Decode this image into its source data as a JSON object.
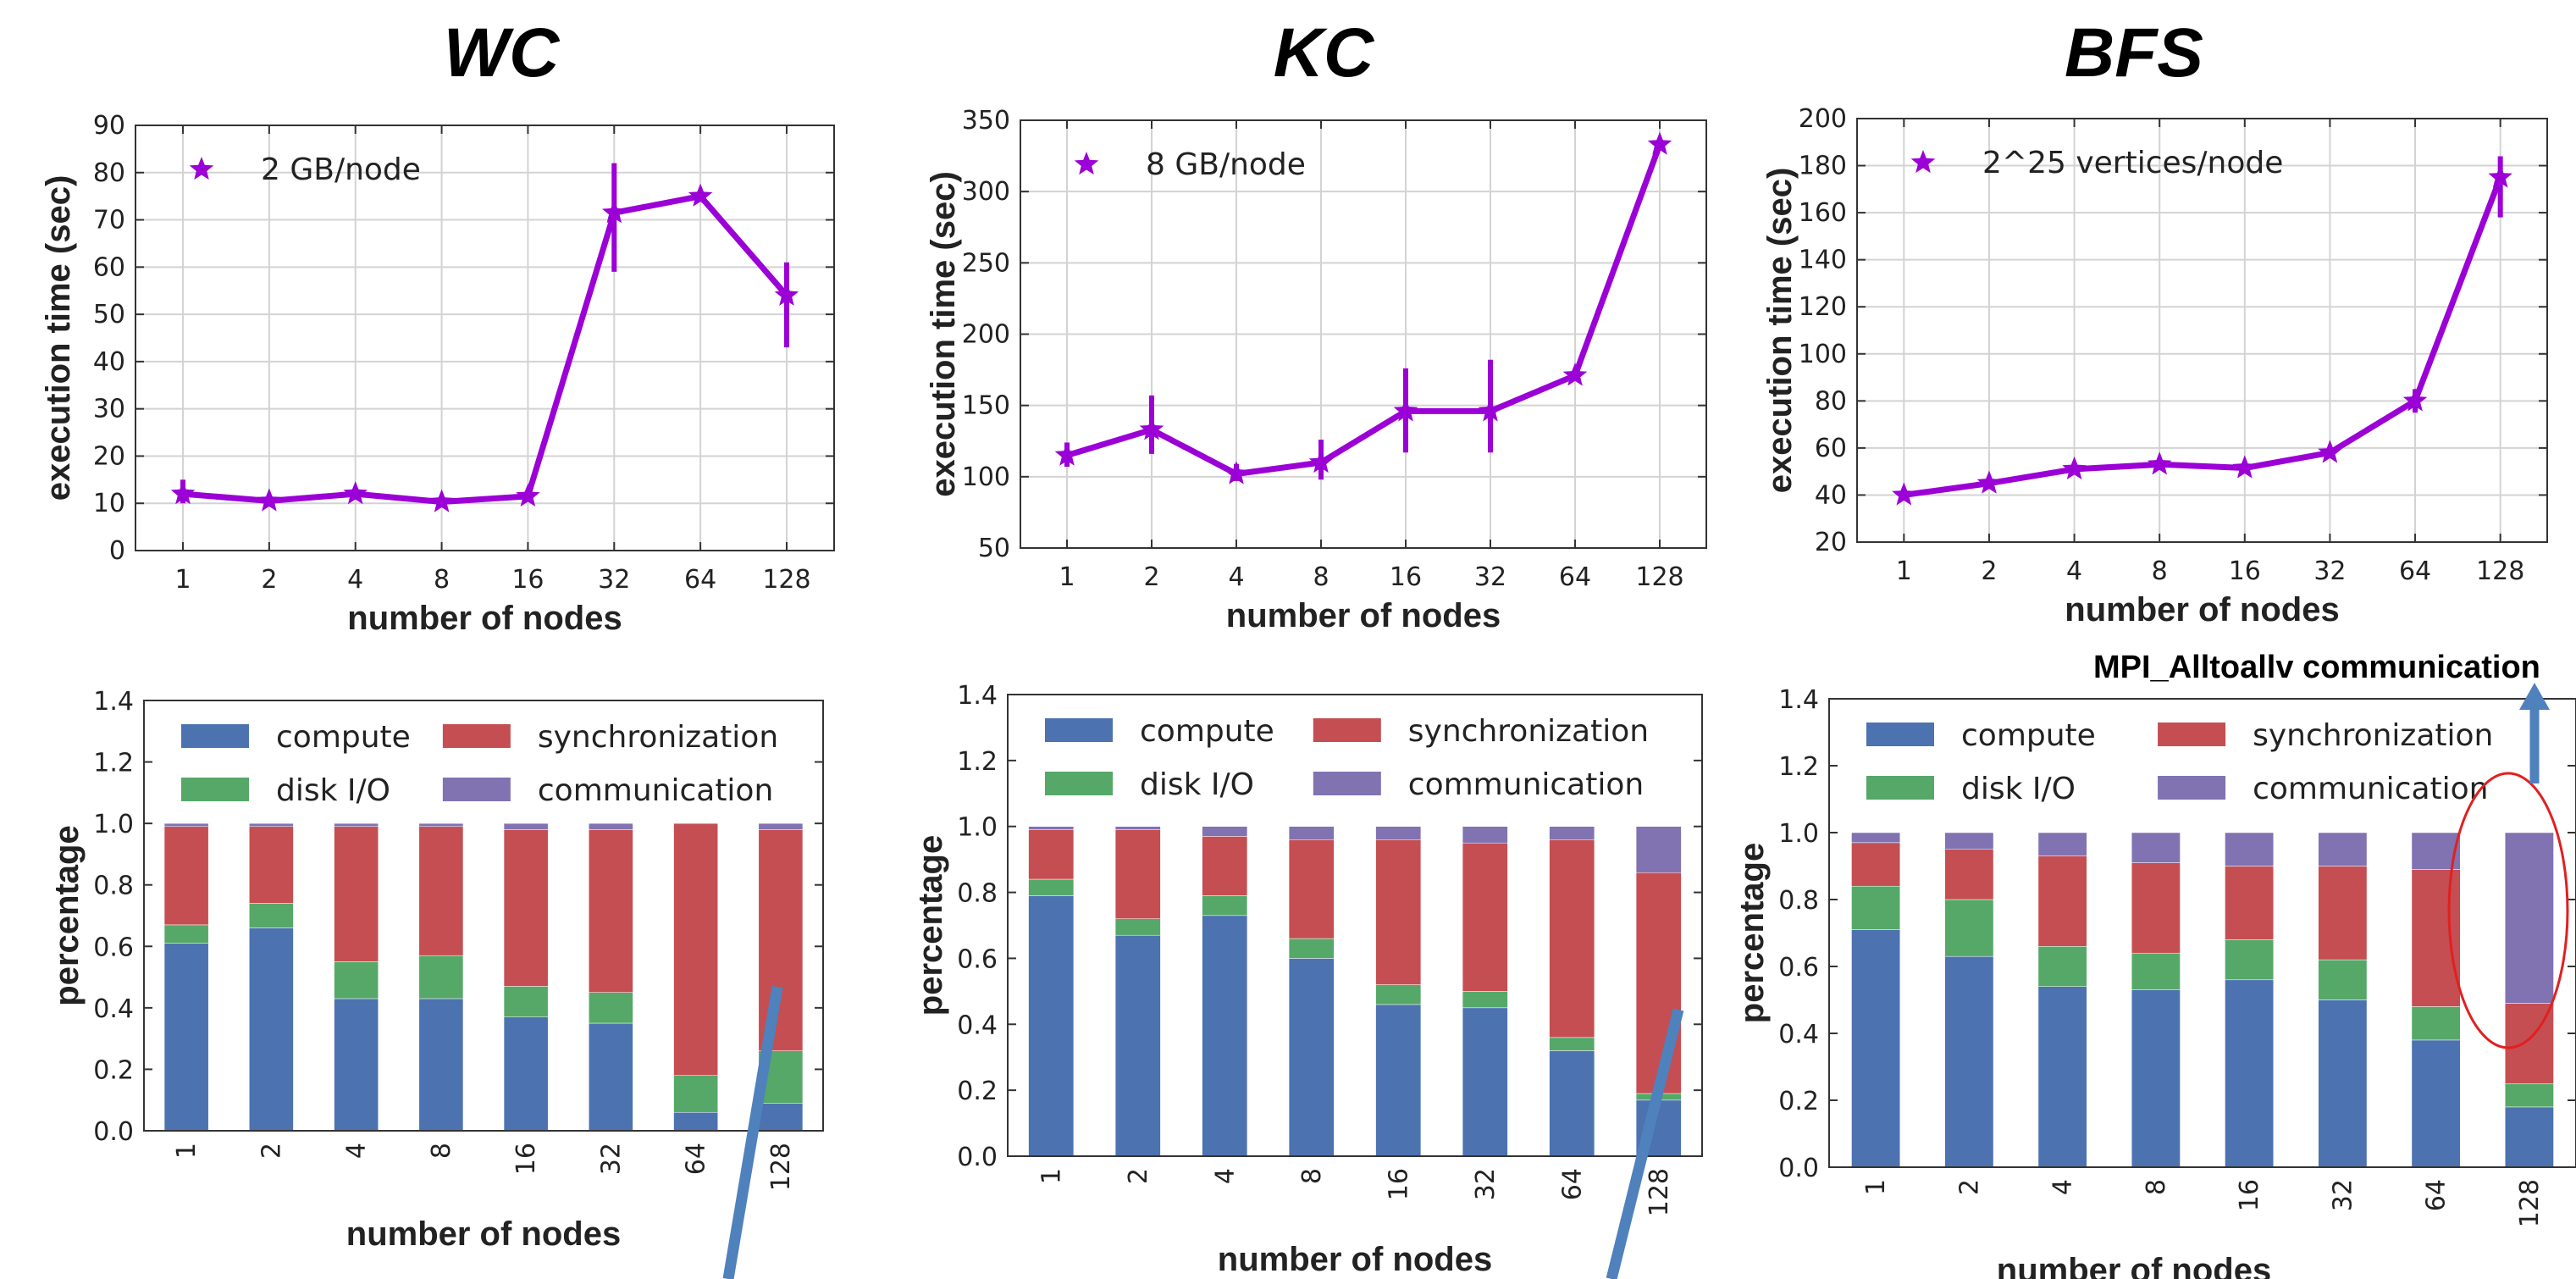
{
  "panel_titles": [
    "WC",
    "KC",
    "BFS"
  ],
  "annotation": "MPI_Alltoallv communication",
  "colors": {
    "line": "#9b00d6",
    "compute": "#4c72b0",
    "disk_io": "#55a868",
    "synchronization": "#c44e52",
    "communication": "#8172b2",
    "arrow": "#4f81bd",
    "highlight": "#e02020"
  },
  "chart_data": [
    {
      "type": "line",
      "title": "WC",
      "xlabel": "number of nodes",
      "ylabel": "execution time (sec)",
      "categories": [
        "1",
        "2",
        "4",
        "8",
        "16",
        "32",
        "64",
        "128"
      ],
      "series": [
        {
          "name": "2 GB/node",
          "values": [
            12,
            10.5,
            12,
            10.3,
            11.5,
            71.5,
            75,
            54
          ],
          "error_low": [
            10,
            10,
            11,
            9.5,
            10.5,
            59,
            74,
            43
          ],
          "error_high": [
            15,
            11,
            12.5,
            11,
            12,
            82,
            76,
            61
          ]
        }
      ],
      "yticks": [
        "0",
        "10",
        "20",
        "30",
        "40",
        "50",
        "60",
        "70",
        "80",
        "90"
      ],
      "ylim": [
        0,
        90
      ],
      "legend": "top-left",
      "grid": true
    },
    {
      "type": "line",
      "title": "KC",
      "xlabel": "number of nodes",
      "ylabel": "execution time (sec)",
      "categories": [
        "1",
        "2",
        "4",
        "8",
        "16",
        "32",
        "64",
        "128"
      ],
      "series": [
        {
          "name": "8 GB/node",
          "values": [
            115,
            133,
            102,
            110,
            146,
            146,
            171,
            333
          ],
          "error_low": [
            107,
            116,
            97,
            98,
            117,
            117,
            168,
            330
          ],
          "error_high": [
            124,
            157,
            109,
            126,
            176,
            182,
            174,
            336
          ]
        }
      ],
      "yticks": [
        "50",
        "100",
        "150",
        "200",
        "250",
        "300",
        "350"
      ],
      "ylim": [
        50,
        350
      ],
      "legend": "top-left",
      "grid": true
    },
    {
      "type": "line",
      "title": "BFS",
      "xlabel": "number of nodes",
      "ylabel": "execution time (sec)",
      "categories": [
        "1",
        "2",
        "4",
        "8",
        "16",
        "32",
        "64",
        "128"
      ],
      "series": [
        {
          "name": "2^25 vertices/node",
          "values": [
            40,
            45,
            51,
            53,
            51.5,
            58,
            80,
            175
          ],
          "error_low": [
            39,
            43,
            49,
            51,
            50,
            56,
            75,
            158
          ],
          "error_high": [
            41,
            47,
            53,
            55,
            53,
            60,
            85,
            184
          ]
        }
      ],
      "yticks": [
        "20",
        "40",
        "60",
        "80",
        "100",
        "120",
        "140",
        "160",
        "180",
        "200"
      ],
      "ylim": [
        20,
        200
      ],
      "legend": "top-left",
      "grid": true
    },
    {
      "type": "bar",
      "stacked": true,
      "xlabel": "number of nodes",
      "ylabel": "percentage",
      "categories": [
        "1",
        "2",
        "4",
        "8",
        "16",
        "32",
        "64",
        "128"
      ],
      "series": [
        {
          "name": "compute",
          "values": [
            0.61,
            0.66,
            0.43,
            0.43,
            0.37,
            0.35,
            0.06,
            0.09
          ]
        },
        {
          "name": "disk I/O",
          "values": [
            0.06,
            0.08,
            0.12,
            0.14,
            0.1,
            0.1,
            0.12,
            0.17
          ]
        },
        {
          "name": "synchronization",
          "values": [
            0.32,
            0.25,
            0.44,
            0.42,
            0.51,
            0.53,
            0.82,
            0.72
          ]
        },
        {
          "name": "communication",
          "values": [
            0.01,
            0.01,
            0.01,
            0.01,
            0.02,
            0.02,
            0.0,
            0.02
          ]
        }
      ],
      "yticks": [
        "0.0",
        "0.2",
        "0.4",
        "0.6",
        "0.8",
        "1.0",
        "1.2",
        "1.4"
      ],
      "ylim": [
        0,
        1.4
      ],
      "legend": "top",
      "grid": false
    },
    {
      "type": "bar",
      "stacked": true,
      "xlabel": "number of nodes",
      "ylabel": "percentage",
      "categories": [
        "1",
        "2",
        "4",
        "8",
        "16",
        "32",
        "64",
        "128"
      ],
      "series": [
        {
          "name": "compute",
          "values": [
            0.79,
            0.67,
            0.73,
            0.6,
            0.46,
            0.45,
            0.32,
            0.17
          ]
        },
        {
          "name": "disk I/O",
          "values": [
            0.05,
            0.05,
            0.06,
            0.06,
            0.06,
            0.05,
            0.04,
            0.02
          ]
        },
        {
          "name": "synchronization",
          "values": [
            0.15,
            0.27,
            0.18,
            0.3,
            0.44,
            0.45,
            0.6,
            0.67
          ]
        },
        {
          "name": "communication",
          "values": [
            0.01,
            0.01,
            0.03,
            0.04,
            0.04,
            0.05,
            0.04,
            0.14
          ]
        }
      ],
      "yticks": [
        "0.0",
        "0.2",
        "0.4",
        "0.6",
        "0.8",
        "1.0",
        "1.2",
        "1.4"
      ],
      "ylim": [
        0,
        1.4
      ],
      "legend": "top",
      "grid": false
    },
    {
      "type": "bar",
      "stacked": true,
      "xlabel": "number of nodes",
      "ylabel": "percentage",
      "categories": [
        "1",
        "2",
        "4",
        "8",
        "16",
        "32",
        "64",
        "128"
      ],
      "series": [
        {
          "name": "compute",
          "values": [
            0.71,
            0.63,
            0.54,
            0.53,
            0.56,
            0.5,
            0.38,
            0.18
          ]
        },
        {
          "name": "disk I/O",
          "values": [
            0.13,
            0.17,
            0.12,
            0.11,
            0.12,
            0.12,
            0.1,
            0.07
          ]
        },
        {
          "name": "synchronization",
          "values": [
            0.13,
            0.15,
            0.27,
            0.27,
            0.22,
            0.28,
            0.41,
            0.24
          ]
        },
        {
          "name": "communication",
          "values": [
            0.03,
            0.05,
            0.07,
            0.09,
            0.1,
            0.1,
            0.11,
            0.51
          ]
        }
      ],
      "yticks": [
        "0.0",
        "0.2",
        "0.4",
        "0.6",
        "0.8",
        "1.0",
        "1.2",
        "1.4"
      ],
      "ylim": [
        0,
        1.4
      ],
      "legend": "top",
      "grid": false
    }
  ]
}
